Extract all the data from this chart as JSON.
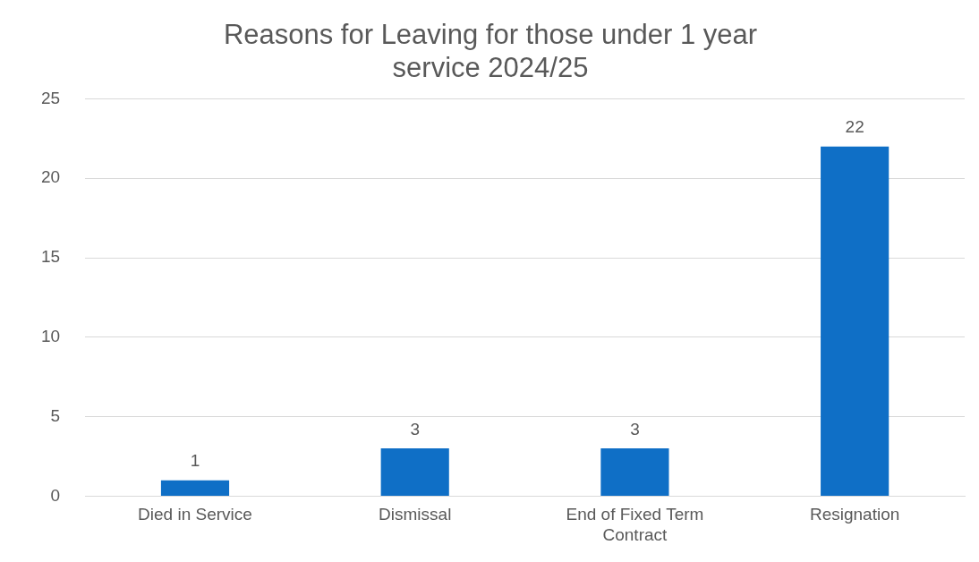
{
  "chart_data": {
    "type": "bar",
    "title": "Reasons for Leaving for those under 1 year service 2024/25",
    "categories": [
      "Died in Service",
      "Dismissal",
      "End of Fixed Term Contract",
      "Resignation"
    ],
    "values": [
      1,
      3,
      3,
      22
    ],
    "color": "#0f6fc6",
    "ylim": [
      0,
      25
    ],
    "yticks": [
      0,
      5,
      10,
      15,
      20,
      25
    ],
    "grid": "y",
    "data_labels": true,
    "legend": false
  }
}
